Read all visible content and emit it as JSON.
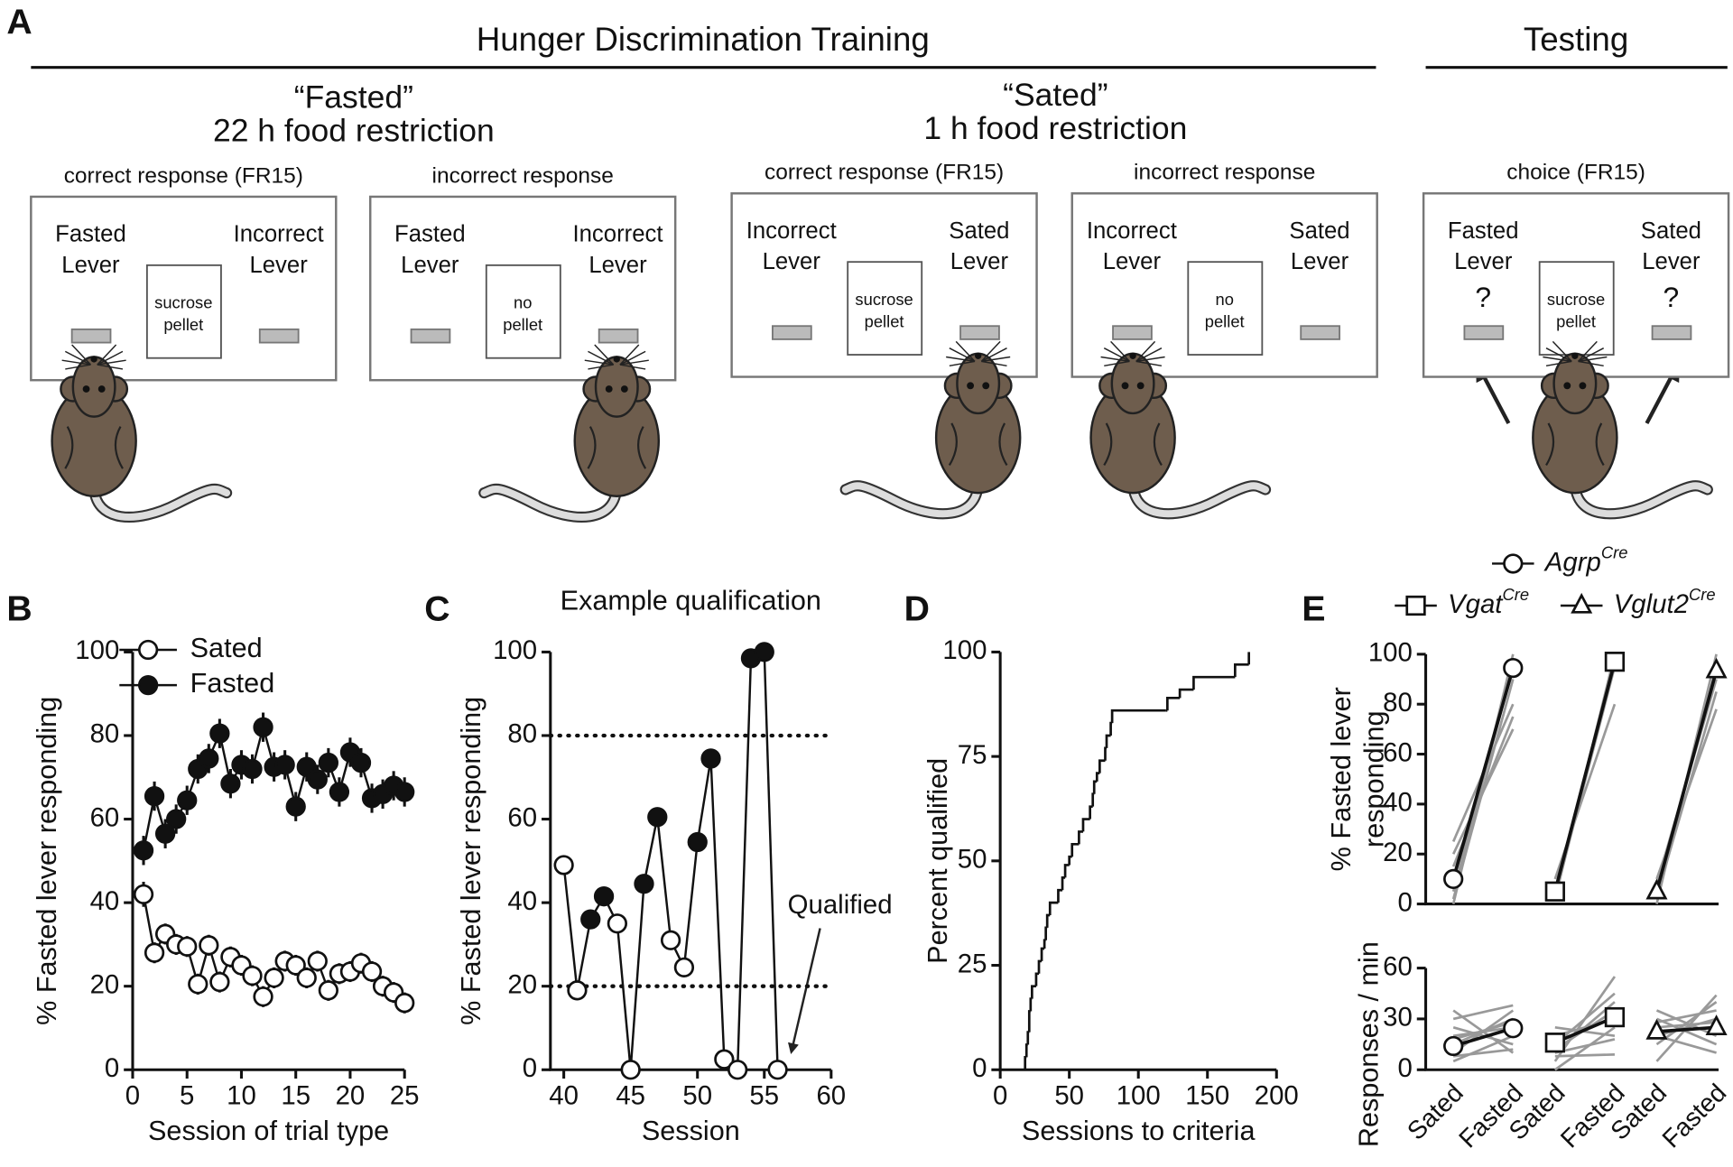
{
  "panel_a": {
    "label": "A",
    "training_title": "Hunger Discrimination Training",
    "testing_title": "Testing",
    "conditions": [
      {
        "title": "“Fasted”",
        "subtitle": "22 h food restriction"
      },
      {
        "title": "“Sated”",
        "subtitle": "1 h food restriction"
      }
    ],
    "boxes": [
      {
        "heading": "correct response (FR15)",
        "left_lever": [
          "Fasted",
          "Lever"
        ],
        "right_lever": [
          "Incorrect",
          "Lever"
        ],
        "tray": [
          "sucrose",
          "pellet"
        ]
      },
      {
        "heading": "incorrect response",
        "left_lever": [
          "Fasted",
          "Lever"
        ],
        "right_lever": [
          "Incorrect",
          "Lever"
        ],
        "tray": [
          "no",
          "pellet"
        ]
      },
      {
        "heading": "correct response (FR15)",
        "left_lever": [
          "Incorrect",
          "Lever"
        ],
        "right_lever": [
          "Sated",
          "Lever"
        ],
        "tray": [
          "sucrose",
          "pellet"
        ]
      },
      {
        "heading": "incorrect response",
        "left_lever": [
          "Incorrect",
          "Lever"
        ],
        "right_lever": [
          "Sated",
          "Lever"
        ],
        "tray": [
          "no",
          "pellet"
        ]
      },
      {
        "heading": "choice (FR15)",
        "left_lever": [
          "Fasted",
          "Lever"
        ],
        "right_lever": [
          "Sated",
          "Lever"
        ],
        "tray": [
          "sucrose",
          "pellet"
        ],
        "left_mark": "?",
        "right_mark": "?"
      }
    ]
  },
  "chart_data": [
    {
      "type": "line",
      "label": "B",
      "xlabel": "Session of trial type",
      "ylabel": "% Fasted lever responding",
      "x": [
        1,
        2,
        3,
        4,
        5,
        6,
        7,
        8,
        9,
        10,
        11,
        12,
        13,
        14,
        15,
        16,
        17,
        18,
        19,
        20,
        21,
        22,
        23,
        24,
        25
      ],
      "series": [
        {
          "name": "Sated",
          "marker": "open",
          "values": [
            42,
            28,
            32.5,
            30,
            29.5,
            20.5,
            29.8,
            21,
            27,
            25,
            22.5,
            17.5,
            22,
            26,
            25,
            22,
            26,
            19,
            23,
            23.5,
            25.5,
            23.5,
            20,
            18.5,
            16
          ],
          "errors": [
            3,
            2.5,
            2.5,
            2.5,
            2.5,
            2.5,
            2.5,
            2.5,
            2.5,
            2.5,
            2.5,
            2.5,
            2.5,
            2.5,
            2.5,
            2.5,
            2.5,
            2.5,
            2.5,
            2.5,
            2.5,
            2.5,
            2.5,
            2.5,
            2.5
          ]
        },
        {
          "name": "Fasted",
          "marker": "filled",
          "values": [
            52.5,
            65.5,
            56.5,
            60,
            64.5,
            72,
            74.5,
            80.5,
            68.5,
            73,
            72,
            82,
            72.5,
            73,
            63,
            72.5,
            69.5,
            73.5,
            66.5,
            76,
            73.5,
            65,
            66,
            68,
            66.5
          ],
          "errors": [
            3.5,
            3.5,
            3.5,
            3.5,
            3.5,
            3.5,
            3.5,
            3.5,
            3.5,
            3.5,
            3.5,
            3.5,
            3.5,
            3.5,
            3.5,
            3.5,
            3.5,
            3.5,
            3.5,
            3.5,
            3.5,
            3.5,
            3.5,
            3.5,
            3.5
          ]
        }
      ],
      "xlim": [
        0,
        25
      ],
      "xticks": [
        0,
        5,
        10,
        15,
        20,
        25
      ],
      "ylim": [
        0,
        100
      ],
      "yticks": [
        0,
        20,
        40,
        60,
        80,
        100
      ]
    },
    {
      "type": "line",
      "label": "C",
      "title": "Example qualification",
      "xlabel": "Session",
      "ylabel": "% Fasted lever responding",
      "x": [
        40,
        41,
        42,
        43,
        44,
        45,
        46,
        47,
        48,
        49,
        50,
        51,
        52,
        53,
        54,
        55,
        56
      ],
      "values": [
        49,
        19,
        36,
        41.5,
        35,
        0,
        44.5,
        60.5,
        31,
        24.5,
        54.5,
        74.5,
        2.5,
        0,
        98.5,
        100,
        0
      ],
      "markers": [
        "open",
        "open",
        "filled",
        "filled",
        "open",
        "open",
        "filled",
        "filled",
        "open",
        "open",
        "filled",
        "filled",
        "open",
        "open",
        "filled",
        "filled",
        "open"
      ],
      "hlines": [
        20,
        80
      ],
      "annotation": "Qualified",
      "xlim": [
        39,
        60
      ],
      "xticks": [
        40,
        45,
        50,
        55,
        60
      ],
      "ylim": [
        0,
        100
      ],
      "yticks": [
        0,
        20,
        40,
        60,
        80,
        100
      ]
    },
    {
      "type": "step",
      "label": "D",
      "xlabel": "Sessions to criteria",
      "ylabel": "Percent qualified",
      "x": [
        18,
        18,
        19,
        20,
        21,
        22,
        23,
        26,
        28,
        30,
        32,
        33,
        34,
        36,
        42,
        45,
        47,
        50,
        52,
        57,
        60,
        65,
        67,
        68,
        70,
        72,
        76,
        77,
        80,
        81,
        120,
        121,
        130,
        140,
        170,
        180
      ],
      "values": [
        0,
        3,
        6,
        9,
        14,
        17,
        20,
        23,
        26,
        29,
        31,
        34,
        37,
        40,
        43,
        46,
        49,
        51,
        54,
        57,
        60,
        63,
        66,
        69,
        71,
        74,
        77,
        80,
        83,
        86,
        86,
        89,
        91,
        94,
        97,
        100
      ],
      "xlim": [
        0,
        200
      ],
      "xticks": [
        0,
        50,
        100,
        150,
        200
      ],
      "ylim": [
        0,
        100
      ],
      "yticks": [
        0,
        25,
        50,
        75,
        100
      ]
    },
    {
      "type": "paired",
      "label": "E",
      "ylabel": [
        "% Fasted lever",
        "responding"
      ],
      "groups": [
        {
          "name": "Agrp",
          "name_sup": "Cre",
          "marker": "circle",
          "means": [
            10,
            94.5
          ],
          "individuals": [
            [
              0,
              100
            ],
            [
              5,
              95
            ],
            [
              15,
              75
            ],
            [
              25,
              80
            ],
            [
              20,
              70
            ],
            [
              2,
              90
            ]
          ]
        },
        {
          "name": "Vgat",
          "name_sup": "Cre",
          "marker": "square",
          "means": [
            5,
            97
          ],
          "individuals": [
            [
              2,
              100
            ],
            [
              10,
              80
            ],
            [
              5,
              98
            ],
            [
              3,
              95
            ]
          ]
        },
        {
          "name": "Vglut2",
          "name_sup": "Cre",
          "marker": "triangle",
          "means": [
            5,
            93.5
          ],
          "individuals": [
            [
              0,
              100
            ],
            [
              3,
              85
            ],
            [
              10,
              78
            ],
            [
              2,
              95
            ],
            [
              8,
              90
            ]
          ]
        }
      ],
      "ylim": [
        0,
        100
      ],
      "yticks": [
        0,
        20,
        40,
        60,
        80,
        100
      ]
    },
    {
      "type": "paired",
      "ylabel": [
        "Responses / min"
      ],
      "categories": [
        "Sated",
        "Fasted"
      ],
      "groups": [
        {
          "marker": "circle",
          "means": [
            14,
            24.5
          ],
          "individuals": [
            [
              5,
              20
            ],
            [
              10,
              35
            ],
            [
              15,
              30
            ],
            [
              20,
              25
            ],
            [
              25,
              15
            ],
            [
              35,
              10
            ],
            [
              30,
              38
            ],
            [
              18,
              28
            ],
            [
              8,
              12
            ]
          ]
        },
        {
          "marker": "square",
          "means": [
            16,
            31
          ],
          "individuals": [
            [
              5,
              55
            ],
            [
              10,
              40
            ],
            [
              15,
              45
            ],
            [
              20,
              30
            ],
            [
              25,
              20
            ],
            [
              10,
              18
            ],
            [
              8,
              9
            ],
            [
              12,
              35
            ],
            [
              0,
              25
            ]
          ]
        },
        {
          "marker": "triangle",
          "means": [
            22.5,
            25
          ],
          "individuals": [
            [
              5,
              44
            ],
            [
              15,
              40
            ],
            [
              20,
              30
            ],
            [
              25,
              28
            ],
            [
              30,
              15
            ],
            [
              35,
              20
            ],
            [
              28,
              35
            ],
            [
              20,
              10
            ]
          ]
        }
      ],
      "ylim": [
        0,
        60
      ],
      "yticks": [
        0,
        30,
        60
      ]
    }
  ]
}
